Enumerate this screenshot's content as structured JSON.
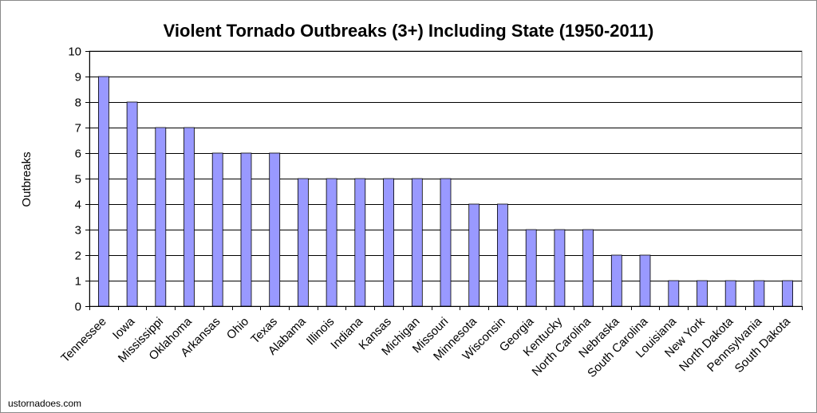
{
  "chart_data": {
    "type": "bar",
    "title": "Violent Tornado Outbreaks (3+) Including State (1950-2011)",
    "xlabel": "",
    "ylabel": "Outbreaks",
    "ylim": [
      0,
      10
    ],
    "yticks": [
      0,
      1,
      2,
      3,
      4,
      5,
      6,
      7,
      8,
      9,
      10
    ],
    "grid": true,
    "legend": "none",
    "bar_color": "#9999ff",
    "categories": [
      "Tennessee",
      "Iowa",
      "Mississippi",
      "Oklahoma",
      "Arkansas",
      "Ohio",
      "Texas",
      "Alabama",
      "Illinois",
      "Indiana",
      "Kansas",
      "Michigan",
      "Missouri",
      "Minnesota",
      "Wisconsin",
      "Georgia",
      "Kentucky",
      "North Carolina",
      "Nebraska",
      "South Carolina",
      "Louisiana",
      "New York",
      "North Dakota",
      "Pennsylvania",
      "South Dakota"
    ],
    "values": [
      9,
      8,
      7,
      7,
      6,
      6,
      6,
      5,
      5,
      5,
      5,
      5,
      5,
      4,
      4,
      3,
      3,
      3,
      2,
      2,
      1,
      1,
      1,
      1,
      1
    ]
  },
  "footer": {
    "credit": "ustornadoes.com"
  }
}
